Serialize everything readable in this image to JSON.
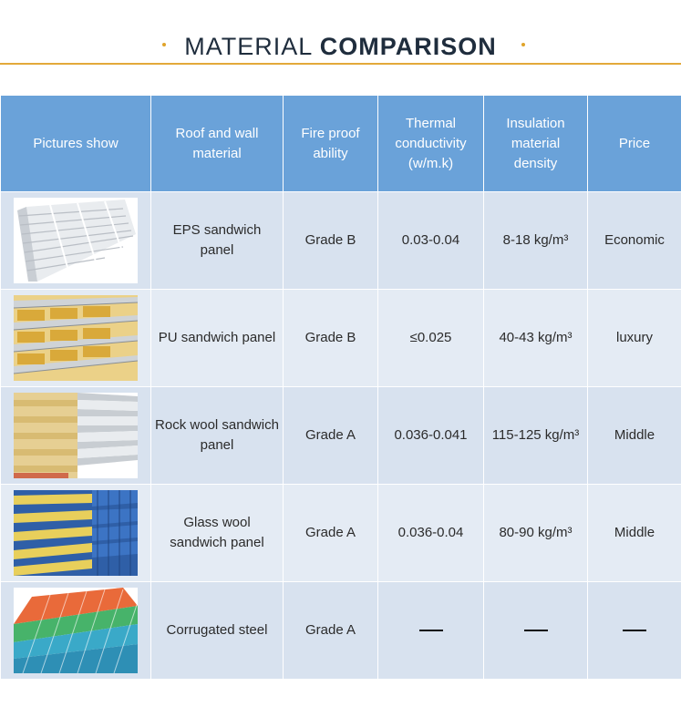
{
  "header": {
    "title_light": "MATERIAL",
    "title_bold": "COMPARISON"
  },
  "table": {
    "headers": [
      "Pictures show",
      "Roof and wall material",
      "Fire proof ability",
      "Thermal conductivity (w/m.k)",
      "Insulation material density",
      "Price"
    ],
    "rows": [
      {
        "image": "eps-panel-image",
        "material": "EPS sandwich panel",
        "fire": "Grade B",
        "thermal": "0.03-0.04",
        "density": "8-18 kg/m³",
        "price": "Economic"
      },
      {
        "image": "pu-panel-image",
        "material": "PU sandwich panel",
        "fire": "Grade B",
        "thermal": "≤0.025",
        "density": "40-43 kg/m³",
        "price": "luxury"
      },
      {
        "image": "rockwool-panel-image",
        "material": "Rock wool sandwich panel",
        "fire": "Grade A",
        "thermal": "0.036-0.041",
        "density": "115-125 kg/m³",
        "price": "Middle"
      },
      {
        "image": "glasswool-panel-image",
        "material": "Glass wool sandwich panel",
        "fire": "Grade A",
        "thermal": "0.036-0.04",
        "density": "80-90 kg/m³",
        "price": "Middle"
      },
      {
        "image": "corrugated-steel-image",
        "material": "Corrugated steel",
        "fire": "Grade A",
        "thermal": "",
        "density": "",
        "price": ""
      }
    ]
  },
  "colors": {
    "header_bg": "#6aa2d9",
    "row_a": "#d8e2ef",
    "row_b": "#e4ebf4",
    "accent": "#e3a93a"
  }
}
